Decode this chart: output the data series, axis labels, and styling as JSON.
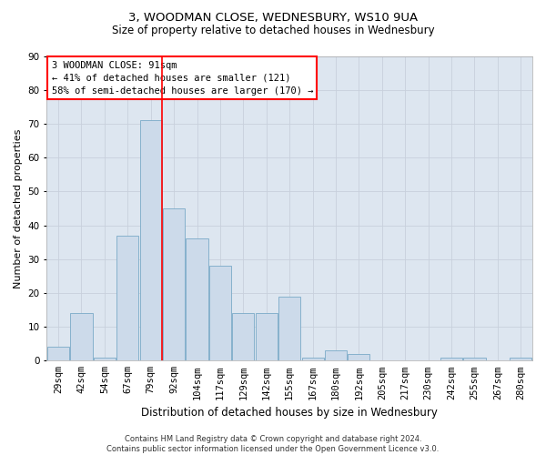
{
  "title1": "3, WOODMAN CLOSE, WEDNESBURY, WS10 9UA",
  "title2": "Size of property relative to detached houses in Wednesbury",
  "xlabel": "Distribution of detached houses by size in Wednesbury",
  "ylabel": "Number of detached properties",
  "footnote": "Contains HM Land Registry data © Crown copyright and database right 2024.\nContains public sector information licensed under the Open Government Licence v3.0.",
  "bin_labels": [
    "29sqm",
    "42sqm",
    "54sqm",
    "67sqm",
    "79sqm",
    "92sqm",
    "104sqm",
    "117sqm",
    "129sqm",
    "142sqm",
    "155sqm",
    "167sqm",
    "180sqm",
    "192sqm",
    "205sqm",
    "217sqm",
    "230sqm",
    "242sqm",
    "255sqm",
    "267sqm",
    "280sqm"
  ],
  "bar_values": [
    4,
    14,
    1,
    37,
    71,
    45,
    36,
    28,
    14,
    14,
    19,
    1,
    3,
    2,
    0,
    0,
    0,
    1,
    1,
    0,
    1
  ],
  "bar_color": "#ccdaea",
  "bar_edge_color": "#7aaac8",
  "vline_x": 4.5,
  "vline_color": "red",
  "property_label": "3 WOODMAN CLOSE: 91sqm",
  "annotation_line1": "← 41% of detached houses are smaller (121)",
  "annotation_line2": "58% of semi-detached houses are larger (170) →",
  "ylim": [
    0,
    90
  ],
  "yticks": [
    0,
    10,
    20,
    30,
    40,
    50,
    60,
    70,
    80,
    90
  ],
  "grid_color": "#c8d0dc",
  "bg_color": "#dde6f0",
  "title1_fontsize": 9.5,
  "title2_fontsize": 8.5,
  "xlabel_fontsize": 8.5,
  "ylabel_fontsize": 8,
  "tick_fontsize": 7.5,
  "annot_fontsize": 7.5,
  "footnote_fontsize": 6
}
